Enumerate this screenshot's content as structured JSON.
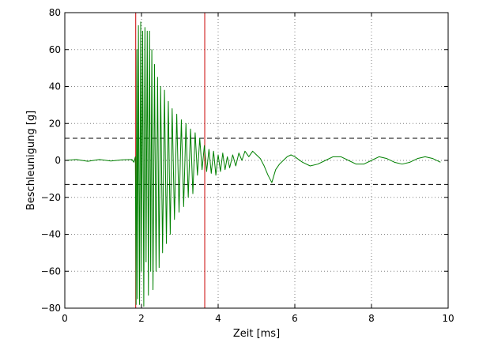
{
  "chart_data": {
    "type": "line",
    "xlabel": "Zeit [ms]",
    "ylabel": "Beschleunigung [g]",
    "xlim": [
      0,
      10
    ],
    "ylim": [
      -80,
      80
    ],
    "xticks": [
      0,
      2,
      4,
      6,
      8,
      10
    ],
    "yticks": [
      -80,
      -60,
      -40,
      -20,
      0,
      20,
      40,
      60,
      80
    ],
    "grid": true,
    "colors": {
      "signal": "#008000",
      "markers": "#cc0000",
      "thresholds": "#000000",
      "grid": "#808080"
    },
    "threshold_lines": [
      12,
      -13
    ],
    "vertical_markers": [
      1.85,
      3.65
    ],
    "series": [
      {
        "x": [
          0,
          0.3,
          0.6,
          0.9,
          1.2,
          1.5,
          1.75,
          1.8,
          1.84,
          1.86,
          1.88,
          1.9,
          1.92,
          1.95,
          1.98,
          2.0,
          2.03,
          2.06,
          2.09,
          2.12,
          2.15,
          2.18,
          2.21,
          2.24,
          2.27,
          2.3,
          2.34,
          2.38,
          2.42,
          2.46,
          2.5,
          2.55,
          2.6,
          2.65,
          2.7,
          2.75,
          2.8,
          2.86,
          2.92,
          2.98,
          3.04,
          3.1,
          3.16,
          3.22,
          3.28,
          3.34,
          3.4,
          3.46,
          3.52,
          3.58,
          3.64,
          3.7,
          3.76,
          3.82,
          3.88,
          3.94,
          4.0,
          4.06,
          4.12,
          4.18,
          4.24,
          4.3,
          4.38,
          4.46,
          4.54,
          4.62,
          4.7,
          4.8,
          4.9,
          5.0,
          5.1,
          5.2,
          5.3,
          5.4,
          5.5,
          5.6,
          5.7,
          5.8,
          5.9,
          6.0,
          6.2,
          6.4,
          6.6,
          6.8,
          7.0,
          7.2,
          7.4,
          7.6,
          7.8,
          8.0,
          8.2,
          8.4,
          8.6,
          8.8,
          9.0,
          9.2,
          9.4,
          9.6,
          9.8
        ],
        "y": [
          0,
          0.5,
          -0.5,
          0.5,
          -0.3,
          0.3,
          0.5,
          -1,
          2,
          -78,
          60,
          -75,
          73,
          -78,
          75,
          -60,
          70,
          -79,
          72,
          -55,
          70,
          -73,
          70,
          -60,
          60,
          -70,
          52,
          -60,
          45,
          -58,
          40,
          -50,
          38,
          -45,
          32,
          -40,
          28,
          -32,
          25,
          -28,
          22,
          -25,
          20,
          -20,
          17,
          -18,
          15,
          -8,
          12,
          -5,
          8,
          -6,
          6,
          -7,
          5,
          -8,
          3,
          -6,
          4,
          -5,
          2,
          -4,
          3,
          -3,
          4,
          0,
          5,
          2,
          5,
          3,
          1,
          -3,
          -8,
          -12,
          -5,
          -2,
          0,
          2,
          3,
          2,
          -1,
          -3,
          -2,
          0,
          2,
          2,
          0,
          -2,
          -2,
          0,
          2,
          1,
          -1,
          -2,
          -1,
          1,
          2,
          1,
          -1
        ]
      }
    ]
  }
}
